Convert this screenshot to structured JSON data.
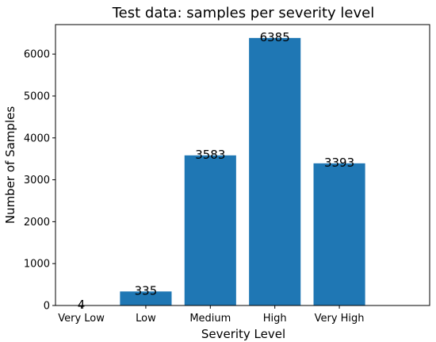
{
  "chart_data": {
    "type": "bar",
    "title": "Test data: samples per severity level",
    "xlabel": "Severity Level",
    "ylabel": "Number of Samples",
    "categories": [
      "Very Low",
      "Low",
      "Medium",
      "High",
      "Very High"
    ],
    "values": [
      4,
      335,
      3583,
      6385,
      3393
    ],
    "data_labels": [
      "4",
      "335",
      "3583",
      "6385",
      "3393"
    ],
    "yticks": [
      0,
      1000,
      2000,
      3000,
      4000,
      5000,
      6000
    ],
    "ytick_labels": [
      "0",
      "1000",
      "2000",
      "3000",
      "4000",
      "5000",
      "6000"
    ],
    "ylim": [
      0,
      6704
    ],
    "bar_color": "#1f77b4",
    "grid": false,
    "legend": "none"
  }
}
